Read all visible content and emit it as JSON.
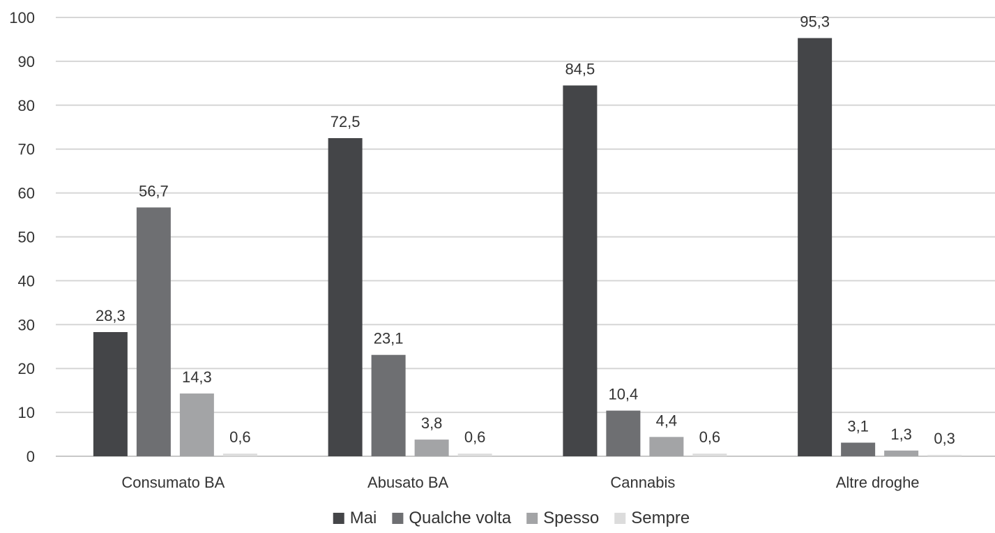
{
  "chart_data": {
    "type": "bar",
    "title": "",
    "xlabel": "",
    "ylabel": "",
    "ylim": [
      0,
      100
    ],
    "yticks": [
      0,
      10,
      20,
      30,
      40,
      50,
      60,
      70,
      80,
      90,
      100
    ],
    "grid": true,
    "legend_position": "bottom",
    "categories": [
      "Consumato BA",
      "Abusato BA",
      "Cannabis",
      "Altre droghe"
    ],
    "series": [
      {
        "name": "Mai",
        "color": "#444548",
        "values": [
          28.3,
          72.5,
          84.5,
          95.3
        ],
        "labels": [
          "28,3",
          "72,5",
          "84,5",
          "95,3"
        ]
      },
      {
        "name": "Qualche volta",
        "color": "#6e6f72",
        "values": [
          56.7,
          23.1,
          10.4,
          3.1
        ],
        "labels": [
          "56,7",
          "23,1",
          "10,4",
          "3,1"
        ]
      },
      {
        "name": "Spesso",
        "color": "#a3a4a6",
        "values": [
          14.3,
          3.8,
          4.4,
          1.3
        ],
        "labels": [
          "14,3",
          "3,8",
          "4,4",
          "1,3"
        ]
      },
      {
        "name": "Sempre",
        "color": "#dcdcdc",
        "values": [
          0.6,
          0.6,
          0.6,
          0.3
        ],
        "labels": [
          "0,6",
          "0,6",
          "0,6",
          "0,3"
        ]
      }
    ]
  }
}
